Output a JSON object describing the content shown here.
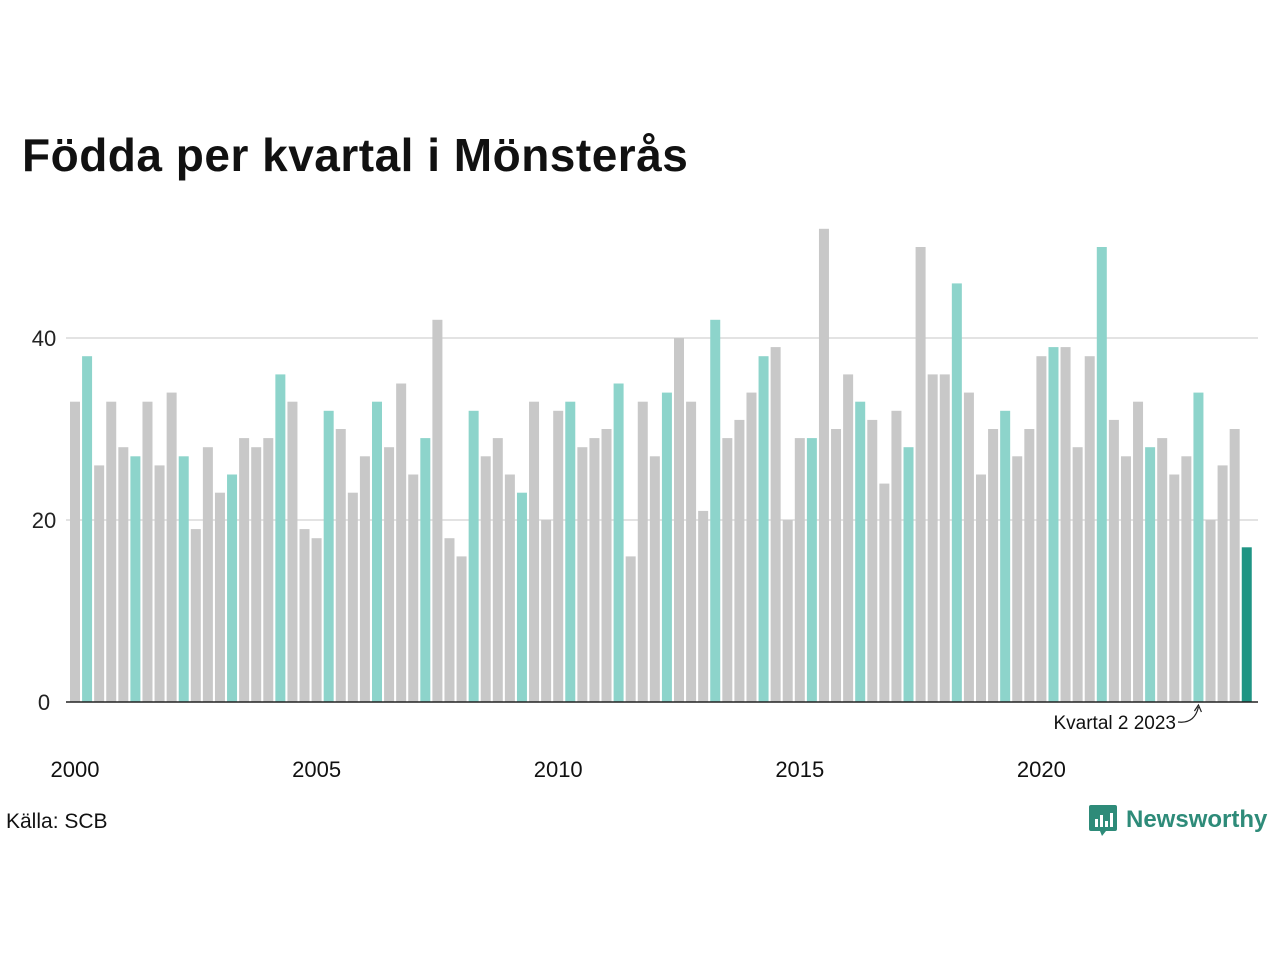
{
  "title": "Födda per kvartal i Mönsterås",
  "source": "Källa: SCB",
  "brand": "Newsworthy",
  "colors": {
    "highlight": "#8dd4cb",
    "default": "#c8c8c8",
    "latest": "#1f9484",
    "brand": "#2e8b79"
  },
  "chart_data": {
    "type": "bar",
    "title": "Födda per kvartal i Mönsterås",
    "xlabel": "",
    "ylabel": "",
    "ylim": [
      0,
      52
    ],
    "yticks": [
      0,
      20,
      40
    ],
    "xticks": [
      "2000",
      "2005",
      "2010",
      "2015",
      "2020"
    ],
    "quarters_per_year": 4,
    "first_period": "2000 Q1",
    "annotation": {
      "text": "Kvartal 2 2023",
      "period": "2023 Q2"
    },
    "values": [
      33,
      38,
      26,
      33,
      28,
      27,
      33,
      26,
      34,
      27,
      19,
      28,
      23,
      25,
      29,
      28,
      29,
      36,
      33,
      19,
      18,
      32,
      30,
      23,
      27,
      33,
      28,
      35,
      25,
      29,
      42,
      18,
      16,
      32,
      27,
      29,
      25,
      23,
      33,
      20,
      32,
      33,
      28,
      29,
      30,
      35,
      16,
      33,
      27,
      34,
      40,
      33,
      21,
      42,
      29,
      31,
      34,
      38,
      39,
      20,
      29,
      29,
      52,
      30,
      36,
      33,
      31,
      24,
      32,
      28,
      50,
      36,
      36,
      46,
      34,
      25,
      30,
      32,
      27,
      30,
      38,
      39,
      39,
      28,
      38,
      50,
      31,
      27,
      33,
      28,
      29,
      25,
      27,
      34,
      20,
      26,
      30,
      17
    ],
    "highlighted_quarter": 2,
    "grid": true
  }
}
